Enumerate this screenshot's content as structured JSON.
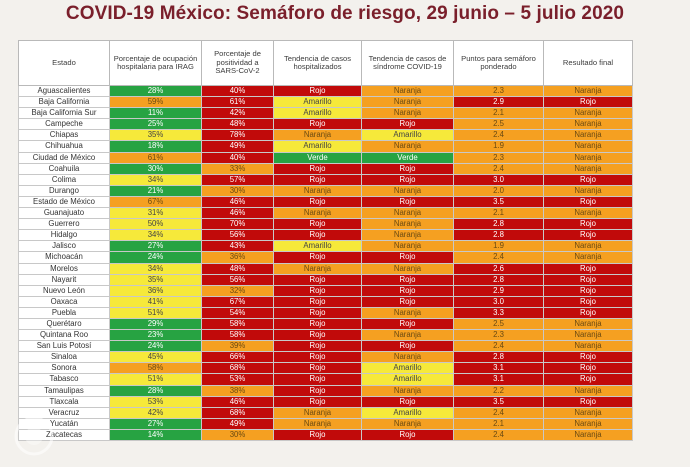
{
  "title": "COVID-19 México: Semáforo de riesgo, 29 junio – 5 julio 2020",
  "headers": [
    "Estado",
    "Porcentaje de ocupación hospitalaria para IRAG",
    "Porcentaje de positividad a SARS-CoV-2",
    "Tendencia de casos hospitalizados",
    "Tendencia de casos de síndrome COVID-19",
    "Puntos para semáforo ponderado",
    "Resultado final"
  ],
  "colors": {
    "verde": "#27a342",
    "amarillo": "#f6e93a",
    "naranja": "#f5a021",
    "rojo": "#c10a0a"
  },
  "rows": [
    {
      "estado": "Aguascalientes",
      "ocup": {
        "v": "28%",
        "c": "verde"
      },
      "pos": {
        "v": "40%",
        "c": "rojo"
      },
      "hosp": {
        "v": "Rojo",
        "c": "rojo"
      },
      "sind": {
        "v": "Naranja",
        "c": "naranja"
      },
      "pts": {
        "v": "2.3",
        "c": "naranja"
      },
      "res": {
        "v": "Naranja",
        "c": "naranja"
      }
    },
    {
      "estado": "Baja California",
      "ocup": {
        "v": "59%",
        "c": "naranja"
      },
      "pos": {
        "v": "61%",
        "c": "rojo"
      },
      "hosp": {
        "v": "Amarillo",
        "c": "amarillo"
      },
      "sind": {
        "v": "Naranja",
        "c": "naranja"
      },
      "pts": {
        "v": "2.9",
        "c": "rojo"
      },
      "res": {
        "v": "Rojo",
        "c": "rojo"
      }
    },
    {
      "estado": "Baja California Sur",
      "ocup": {
        "v": "11%",
        "c": "verde"
      },
      "pos": {
        "v": "42%",
        "c": "rojo"
      },
      "hosp": {
        "v": "Amarillo",
        "c": "amarillo"
      },
      "sind": {
        "v": "Naranja",
        "c": "naranja"
      },
      "pts": {
        "v": "2.1",
        "c": "naranja"
      },
      "res": {
        "v": "Naranja",
        "c": "naranja"
      }
    },
    {
      "estado": "Campeche",
      "ocup": {
        "v": "25%",
        "c": "verde"
      },
      "pos": {
        "v": "48%",
        "c": "rojo"
      },
      "hosp": {
        "v": "Rojo",
        "c": "rojo"
      },
      "sind": {
        "v": "Rojo",
        "c": "rojo"
      },
      "pts": {
        "v": "2.5",
        "c": "naranja"
      },
      "res": {
        "v": "Naranja",
        "c": "naranja"
      }
    },
    {
      "estado": "Chiapas",
      "ocup": {
        "v": "35%",
        "c": "amarillo"
      },
      "pos": {
        "v": "78%",
        "c": "rojo"
      },
      "hosp": {
        "v": "Naranja",
        "c": "naranja"
      },
      "sind": {
        "v": "Amarillo",
        "c": "amarillo"
      },
      "pts": {
        "v": "2.4",
        "c": "naranja"
      },
      "res": {
        "v": "Naranja",
        "c": "naranja"
      }
    },
    {
      "estado": "Chihuahua",
      "ocup": {
        "v": "18%",
        "c": "verde"
      },
      "pos": {
        "v": "49%",
        "c": "rojo"
      },
      "hosp": {
        "v": "Amarillo",
        "c": "amarillo"
      },
      "sind": {
        "v": "Naranja",
        "c": "naranja"
      },
      "pts": {
        "v": "1.9",
        "c": "naranja"
      },
      "res": {
        "v": "Naranja",
        "c": "naranja"
      }
    },
    {
      "estado": "Ciudad de México",
      "ocup": {
        "v": "61%",
        "c": "naranja"
      },
      "pos": {
        "v": "40%",
        "c": "rojo"
      },
      "hosp": {
        "v": "Verde",
        "c": "verde"
      },
      "sind": {
        "v": "Verde",
        "c": "verde"
      },
      "pts": {
        "v": "2.3",
        "c": "naranja"
      },
      "res": {
        "v": "Naranja",
        "c": "naranja"
      }
    },
    {
      "estado": "Coahuila",
      "ocup": {
        "v": "30%",
        "c": "verde"
      },
      "pos": {
        "v": "33%",
        "c": "naranja"
      },
      "hosp": {
        "v": "Rojo",
        "c": "rojo"
      },
      "sind": {
        "v": "Rojo",
        "c": "rojo"
      },
      "pts": {
        "v": "2.4",
        "c": "naranja"
      },
      "res": {
        "v": "Naranja",
        "c": "naranja"
      }
    },
    {
      "estado": "Colima",
      "ocup": {
        "v": "34%",
        "c": "amarillo"
      },
      "pos": {
        "v": "57%",
        "c": "rojo"
      },
      "hosp": {
        "v": "Rojo",
        "c": "rojo"
      },
      "sind": {
        "v": "Rojo",
        "c": "rojo"
      },
      "pts": {
        "v": "3.0",
        "c": "rojo"
      },
      "res": {
        "v": "Rojo",
        "c": "rojo"
      }
    },
    {
      "estado": "Durango",
      "ocup": {
        "v": "21%",
        "c": "verde"
      },
      "pos": {
        "v": "30%",
        "c": "naranja"
      },
      "hosp": {
        "v": "Naranja",
        "c": "naranja"
      },
      "sind": {
        "v": "Naranja",
        "c": "naranja"
      },
      "pts": {
        "v": "2.0",
        "c": "naranja"
      },
      "res": {
        "v": "Naranja",
        "c": "naranja"
      }
    },
    {
      "estado": "Estado de México",
      "ocup": {
        "v": "67%",
        "c": "naranja"
      },
      "pos": {
        "v": "46%",
        "c": "rojo"
      },
      "hosp": {
        "v": "Rojo",
        "c": "rojo"
      },
      "sind": {
        "v": "Rojo",
        "c": "rojo"
      },
      "pts": {
        "v": "3.5",
        "c": "rojo"
      },
      "res": {
        "v": "Rojo",
        "c": "rojo"
      }
    },
    {
      "estado": "Guanajuato",
      "ocup": {
        "v": "31%",
        "c": "amarillo"
      },
      "pos": {
        "v": "46%",
        "c": "rojo"
      },
      "hosp": {
        "v": "Naranja",
        "c": "naranja"
      },
      "sind": {
        "v": "Naranja",
        "c": "naranja"
      },
      "pts": {
        "v": "2.1",
        "c": "naranja"
      },
      "res": {
        "v": "Naranja",
        "c": "naranja"
      }
    },
    {
      "estado": "Guerrero",
      "ocup": {
        "v": "50%",
        "c": "amarillo"
      },
      "pos": {
        "v": "70%",
        "c": "rojo"
      },
      "hosp": {
        "v": "Rojo",
        "c": "rojo"
      },
      "sind": {
        "v": "Naranja",
        "c": "naranja"
      },
      "pts": {
        "v": "2.8",
        "c": "rojo"
      },
      "res": {
        "v": "Rojo",
        "c": "rojo"
      }
    },
    {
      "estado": "Hidalgo",
      "ocup": {
        "v": "34%",
        "c": "amarillo"
      },
      "pos": {
        "v": "56%",
        "c": "rojo"
      },
      "hosp": {
        "v": "Rojo",
        "c": "rojo"
      },
      "sind": {
        "v": "Naranja",
        "c": "naranja"
      },
      "pts": {
        "v": "2.8",
        "c": "rojo"
      },
      "res": {
        "v": "Rojo",
        "c": "rojo"
      }
    },
    {
      "estado": "Jalisco",
      "ocup": {
        "v": "27%",
        "c": "verde"
      },
      "pos": {
        "v": "43%",
        "c": "rojo"
      },
      "hosp": {
        "v": "Amarillo",
        "c": "amarillo"
      },
      "sind": {
        "v": "Naranja",
        "c": "naranja"
      },
      "pts": {
        "v": "1.9",
        "c": "naranja"
      },
      "res": {
        "v": "Naranja",
        "c": "naranja"
      }
    },
    {
      "estado": "Michoacán",
      "ocup": {
        "v": "24%",
        "c": "verde"
      },
      "pos": {
        "v": "36%",
        "c": "naranja"
      },
      "hosp": {
        "v": "Rojo",
        "c": "rojo"
      },
      "sind": {
        "v": "Rojo",
        "c": "rojo"
      },
      "pts": {
        "v": "2.4",
        "c": "naranja"
      },
      "res": {
        "v": "Naranja",
        "c": "naranja"
      }
    },
    {
      "estado": "Morelos",
      "ocup": {
        "v": "34%",
        "c": "amarillo"
      },
      "pos": {
        "v": "48%",
        "c": "rojo"
      },
      "hosp": {
        "v": "Naranja",
        "c": "naranja"
      },
      "sind": {
        "v": "Naranja",
        "c": "naranja"
      },
      "pts": {
        "v": "2.6",
        "c": "rojo"
      },
      "res": {
        "v": "Rojo",
        "c": "rojo"
      }
    },
    {
      "estado": "Nayarit",
      "ocup": {
        "v": "35%",
        "c": "amarillo"
      },
      "pos": {
        "v": "56%",
        "c": "rojo"
      },
      "hosp": {
        "v": "Rojo",
        "c": "rojo"
      },
      "sind": {
        "v": "Rojo",
        "c": "rojo"
      },
      "pts": {
        "v": "2.8",
        "c": "rojo"
      },
      "res": {
        "v": "Rojo",
        "c": "rojo"
      }
    },
    {
      "estado": "Nuevo León",
      "ocup": {
        "v": "36%",
        "c": "amarillo"
      },
      "pos": {
        "v": "32%",
        "c": "naranja"
      },
      "hosp": {
        "v": "Rojo",
        "c": "rojo"
      },
      "sind": {
        "v": "Rojo",
        "c": "rojo"
      },
      "pts": {
        "v": "2.9",
        "c": "rojo"
      },
      "res": {
        "v": "Rojo",
        "c": "rojo"
      }
    },
    {
      "estado": "Oaxaca",
      "ocup": {
        "v": "41%",
        "c": "amarillo"
      },
      "pos": {
        "v": "67%",
        "c": "rojo"
      },
      "hosp": {
        "v": "Rojo",
        "c": "rojo"
      },
      "sind": {
        "v": "Rojo",
        "c": "rojo"
      },
      "pts": {
        "v": "3.0",
        "c": "rojo"
      },
      "res": {
        "v": "Rojo",
        "c": "rojo"
      }
    },
    {
      "estado": "Puebla",
      "ocup": {
        "v": "51%",
        "c": "amarillo"
      },
      "pos": {
        "v": "54%",
        "c": "rojo"
      },
      "hosp": {
        "v": "Rojo",
        "c": "rojo"
      },
      "sind": {
        "v": "Naranja",
        "c": "naranja"
      },
      "pts": {
        "v": "3.3",
        "c": "rojo"
      },
      "res": {
        "v": "Rojo",
        "c": "rojo"
      }
    },
    {
      "estado": "Querétaro",
      "ocup": {
        "v": "29%",
        "c": "verde"
      },
      "pos": {
        "v": "58%",
        "c": "rojo"
      },
      "hosp": {
        "v": "Rojo",
        "c": "rojo"
      },
      "sind": {
        "v": "Rojo",
        "c": "rojo"
      },
      "pts": {
        "v": "2.5",
        "c": "naranja"
      },
      "res": {
        "v": "Naranja",
        "c": "naranja"
      }
    },
    {
      "estado": "Quintana Roo",
      "ocup": {
        "v": "23%",
        "c": "verde"
      },
      "pos": {
        "v": "58%",
        "c": "rojo"
      },
      "hosp": {
        "v": "Rojo",
        "c": "rojo"
      },
      "sind": {
        "v": "Naranja",
        "c": "naranja"
      },
      "pts": {
        "v": "2.3",
        "c": "naranja"
      },
      "res": {
        "v": "Naranja",
        "c": "naranja"
      }
    },
    {
      "estado": "San Luis Potosí",
      "ocup": {
        "v": "24%",
        "c": "verde"
      },
      "pos": {
        "v": "39%",
        "c": "naranja"
      },
      "hosp": {
        "v": "Rojo",
        "c": "rojo"
      },
      "sind": {
        "v": "Rojo",
        "c": "rojo"
      },
      "pts": {
        "v": "2.4",
        "c": "naranja"
      },
      "res": {
        "v": "Naranja",
        "c": "naranja"
      }
    },
    {
      "estado": "Sinaloa",
      "ocup": {
        "v": "45%",
        "c": "amarillo"
      },
      "pos": {
        "v": "66%",
        "c": "rojo"
      },
      "hosp": {
        "v": "Rojo",
        "c": "rojo"
      },
      "sind": {
        "v": "Naranja",
        "c": "naranja"
      },
      "pts": {
        "v": "2.8",
        "c": "rojo"
      },
      "res": {
        "v": "Rojo",
        "c": "rojo"
      }
    },
    {
      "estado": "Sonora",
      "ocup": {
        "v": "58%",
        "c": "naranja"
      },
      "pos": {
        "v": "68%",
        "c": "rojo"
      },
      "hosp": {
        "v": "Rojo",
        "c": "rojo"
      },
      "sind": {
        "v": "Amarillo",
        "c": "amarillo"
      },
      "pts": {
        "v": "3.1",
        "c": "rojo"
      },
      "res": {
        "v": "Rojo",
        "c": "rojo"
      }
    },
    {
      "estado": "Tabasco",
      "ocup": {
        "v": "51%",
        "c": "amarillo"
      },
      "pos": {
        "v": "53%",
        "c": "rojo"
      },
      "hosp": {
        "v": "Rojo",
        "c": "rojo"
      },
      "sind": {
        "v": "Amarillo",
        "c": "amarillo"
      },
      "pts": {
        "v": "3.1",
        "c": "rojo"
      },
      "res": {
        "v": "Rojo",
        "c": "rojo"
      }
    },
    {
      "estado": "Tamaulipas",
      "ocup": {
        "v": "28%",
        "c": "verde"
      },
      "pos": {
        "v": "38%",
        "c": "naranja"
      },
      "hosp": {
        "v": "Rojo",
        "c": "rojo"
      },
      "sind": {
        "v": "Naranja",
        "c": "naranja"
      },
      "pts": {
        "v": "2.2",
        "c": "naranja"
      },
      "res": {
        "v": "Naranja",
        "c": "naranja"
      }
    },
    {
      "estado": "Tlaxcala",
      "ocup": {
        "v": "53%",
        "c": "amarillo"
      },
      "pos": {
        "v": "46%",
        "c": "rojo"
      },
      "hosp": {
        "v": "Rojo",
        "c": "rojo"
      },
      "sind": {
        "v": "Rojo",
        "c": "rojo"
      },
      "pts": {
        "v": "3.5",
        "c": "rojo"
      },
      "res": {
        "v": "Rojo",
        "c": "rojo"
      }
    },
    {
      "estado": "Veracruz",
      "ocup": {
        "v": "42%",
        "c": "amarillo"
      },
      "pos": {
        "v": "68%",
        "c": "rojo"
      },
      "hosp": {
        "v": "Naranja",
        "c": "naranja"
      },
      "sind": {
        "v": "Amarillo",
        "c": "amarillo"
      },
      "pts": {
        "v": "2.4",
        "c": "naranja"
      },
      "res": {
        "v": "Naranja",
        "c": "naranja"
      }
    },
    {
      "estado": "Yucatán",
      "ocup": {
        "v": "27%",
        "c": "verde"
      },
      "pos": {
        "v": "49%",
        "c": "rojo"
      },
      "hosp": {
        "v": "Naranja",
        "c": "naranja"
      },
      "sind": {
        "v": "Naranja",
        "c": "naranja"
      },
      "pts": {
        "v": "2.1",
        "c": "naranja"
      },
      "res": {
        "v": "Naranja",
        "c": "naranja"
      }
    },
    {
      "estado": "Zacatecas",
      "ocup": {
        "v": "14%",
        "c": "verde"
      },
      "pos": {
        "v": "30%",
        "c": "naranja"
      },
      "hosp": {
        "v": "Rojo",
        "c": "rojo"
      },
      "sind": {
        "v": "Rojo",
        "c": "rojo"
      },
      "pts": {
        "v": "2.4",
        "c": "naranja"
      },
      "res": {
        "v": "Naranja",
        "c": "naranja"
      }
    }
  ]
}
